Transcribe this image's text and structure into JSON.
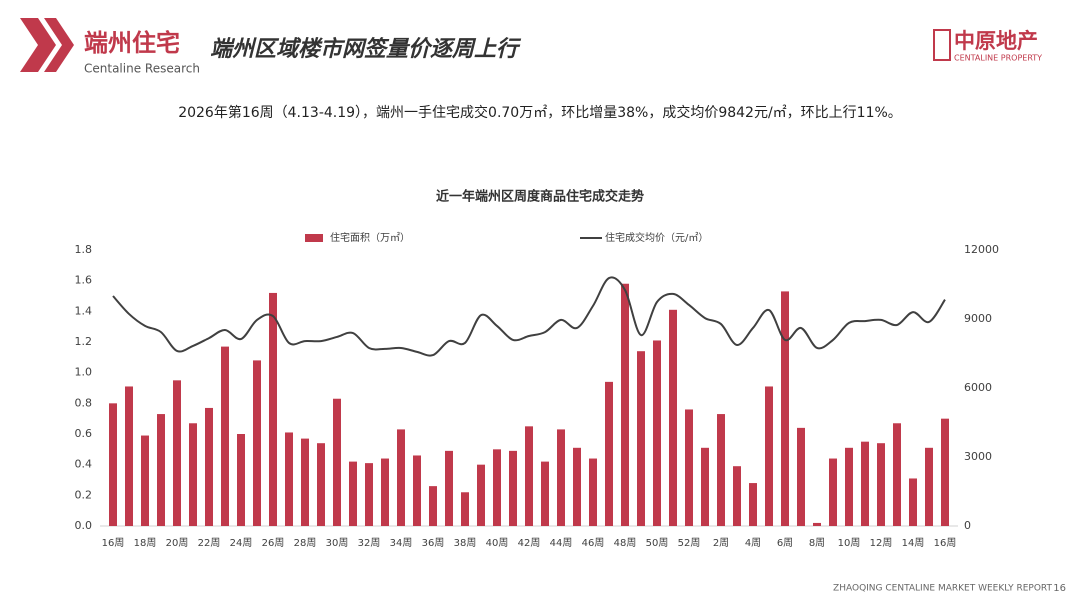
{
  "header": {
    "brand": "端州住宅",
    "brand_sub": "Centaline Research",
    "title": "端州区域楼市网签量价逐周上行",
    "logo": "中原地产",
    "logo_sub": "CENTALINE PROPERTY"
  },
  "summary": "2026年第16周（4.13-4.19），端州一手住宅成交0.70万㎡，环比增量38%，成交均价9842元/㎡，环比上行11%。",
  "chart_data": {
    "type": "combo",
    "title": "近一年端州区周度商品住宅成交走势",
    "categories": [
      "16周",
      null,
      "18周",
      null,
      "20周",
      null,
      "22周",
      null,
      "24周",
      null,
      "26周",
      null,
      "28周",
      null,
      "30周",
      null,
      "32周",
      null,
      "34周",
      null,
      "36周",
      null,
      "38周",
      null,
      "40周",
      null,
      "42周",
      null,
      "44周",
      null,
      "46周",
      null,
      "48周",
      null,
      "50周",
      null,
      "52周",
      null,
      "2周",
      null,
      "4周",
      null,
      "6周",
      null,
      "8周",
      null,
      "10周",
      null,
      "12周",
      null,
      "14周",
      null,
      "16周"
    ],
    "series": [
      {
        "name": "住宅面积（万㎡）",
        "type": "bar",
        "color": "#c0394b",
        "values": [
          0.8,
          0.91,
          0.59,
          0.73,
          0.95,
          0.67,
          0.77,
          1.17,
          0.6,
          1.08,
          1.52,
          0.61,
          0.57,
          0.54,
          0.83,
          0.42,
          0.41,
          0.44,
          0.63,
          0.46,
          0.26,
          0.49,
          0.22,
          0.4,
          0.5,
          0.49,
          0.65,
          0.42,
          0.63,
          0.51,
          0.44,
          0.94,
          1.58,
          1.14,
          1.21,
          1.41,
          0.76,
          0.51,
          0.73,
          0.39,
          0.28,
          0.91,
          1.53,
          0.64,
          0.02,
          0.44,
          0.51,
          0.55,
          0.54,
          0.67,
          0.31,
          0.51,
          0.7
        ]
      },
      {
        "name": "住宅成交均价（元/㎡）",
        "type": "line",
        "axis": "y2",
        "color": "#404040",
        "values": [
          10000,
          9220,
          8700,
          8430,
          7610,
          7830,
          8170,
          8520,
          8130,
          8960,
          9130,
          7960,
          8040,
          8040,
          8220,
          8390,
          7740,
          7700,
          7740,
          7570,
          7430,
          8040,
          7960,
          9170,
          8700,
          8090,
          8260,
          8430,
          8960,
          8610,
          9570,
          10780,
          10260,
          8300,
          9740,
          10090,
          9610,
          9040,
          8780,
          7870,
          8610,
          9390,
          8090,
          8610,
          7740,
          8090,
          8830,
          8910,
          8960,
          8740,
          9300,
          8870,
          9842
        ]
      }
    ],
    "ylim": [
      0,
      1.8
    ],
    "yticks": [
      {
        "value": 0,
        "label": "0.0"
      },
      0.2,
      0.4,
      0.6,
      0.8,
      {
        "value": 1,
        "label": "1.0"
      },
      1.2,
      1.4,
      1.6,
      1.8
    ],
    "y2lim": [
      0,
      12000
    ],
    "y2ticks": [
      0,
      3000,
      6000,
      9000,
      12000
    ],
    "grid": false,
    "legend": "top"
  },
  "footer": {
    "report": "ZHAOQING  CENTALINE MARKET WEEKLY REPORT",
    "page": "16"
  }
}
